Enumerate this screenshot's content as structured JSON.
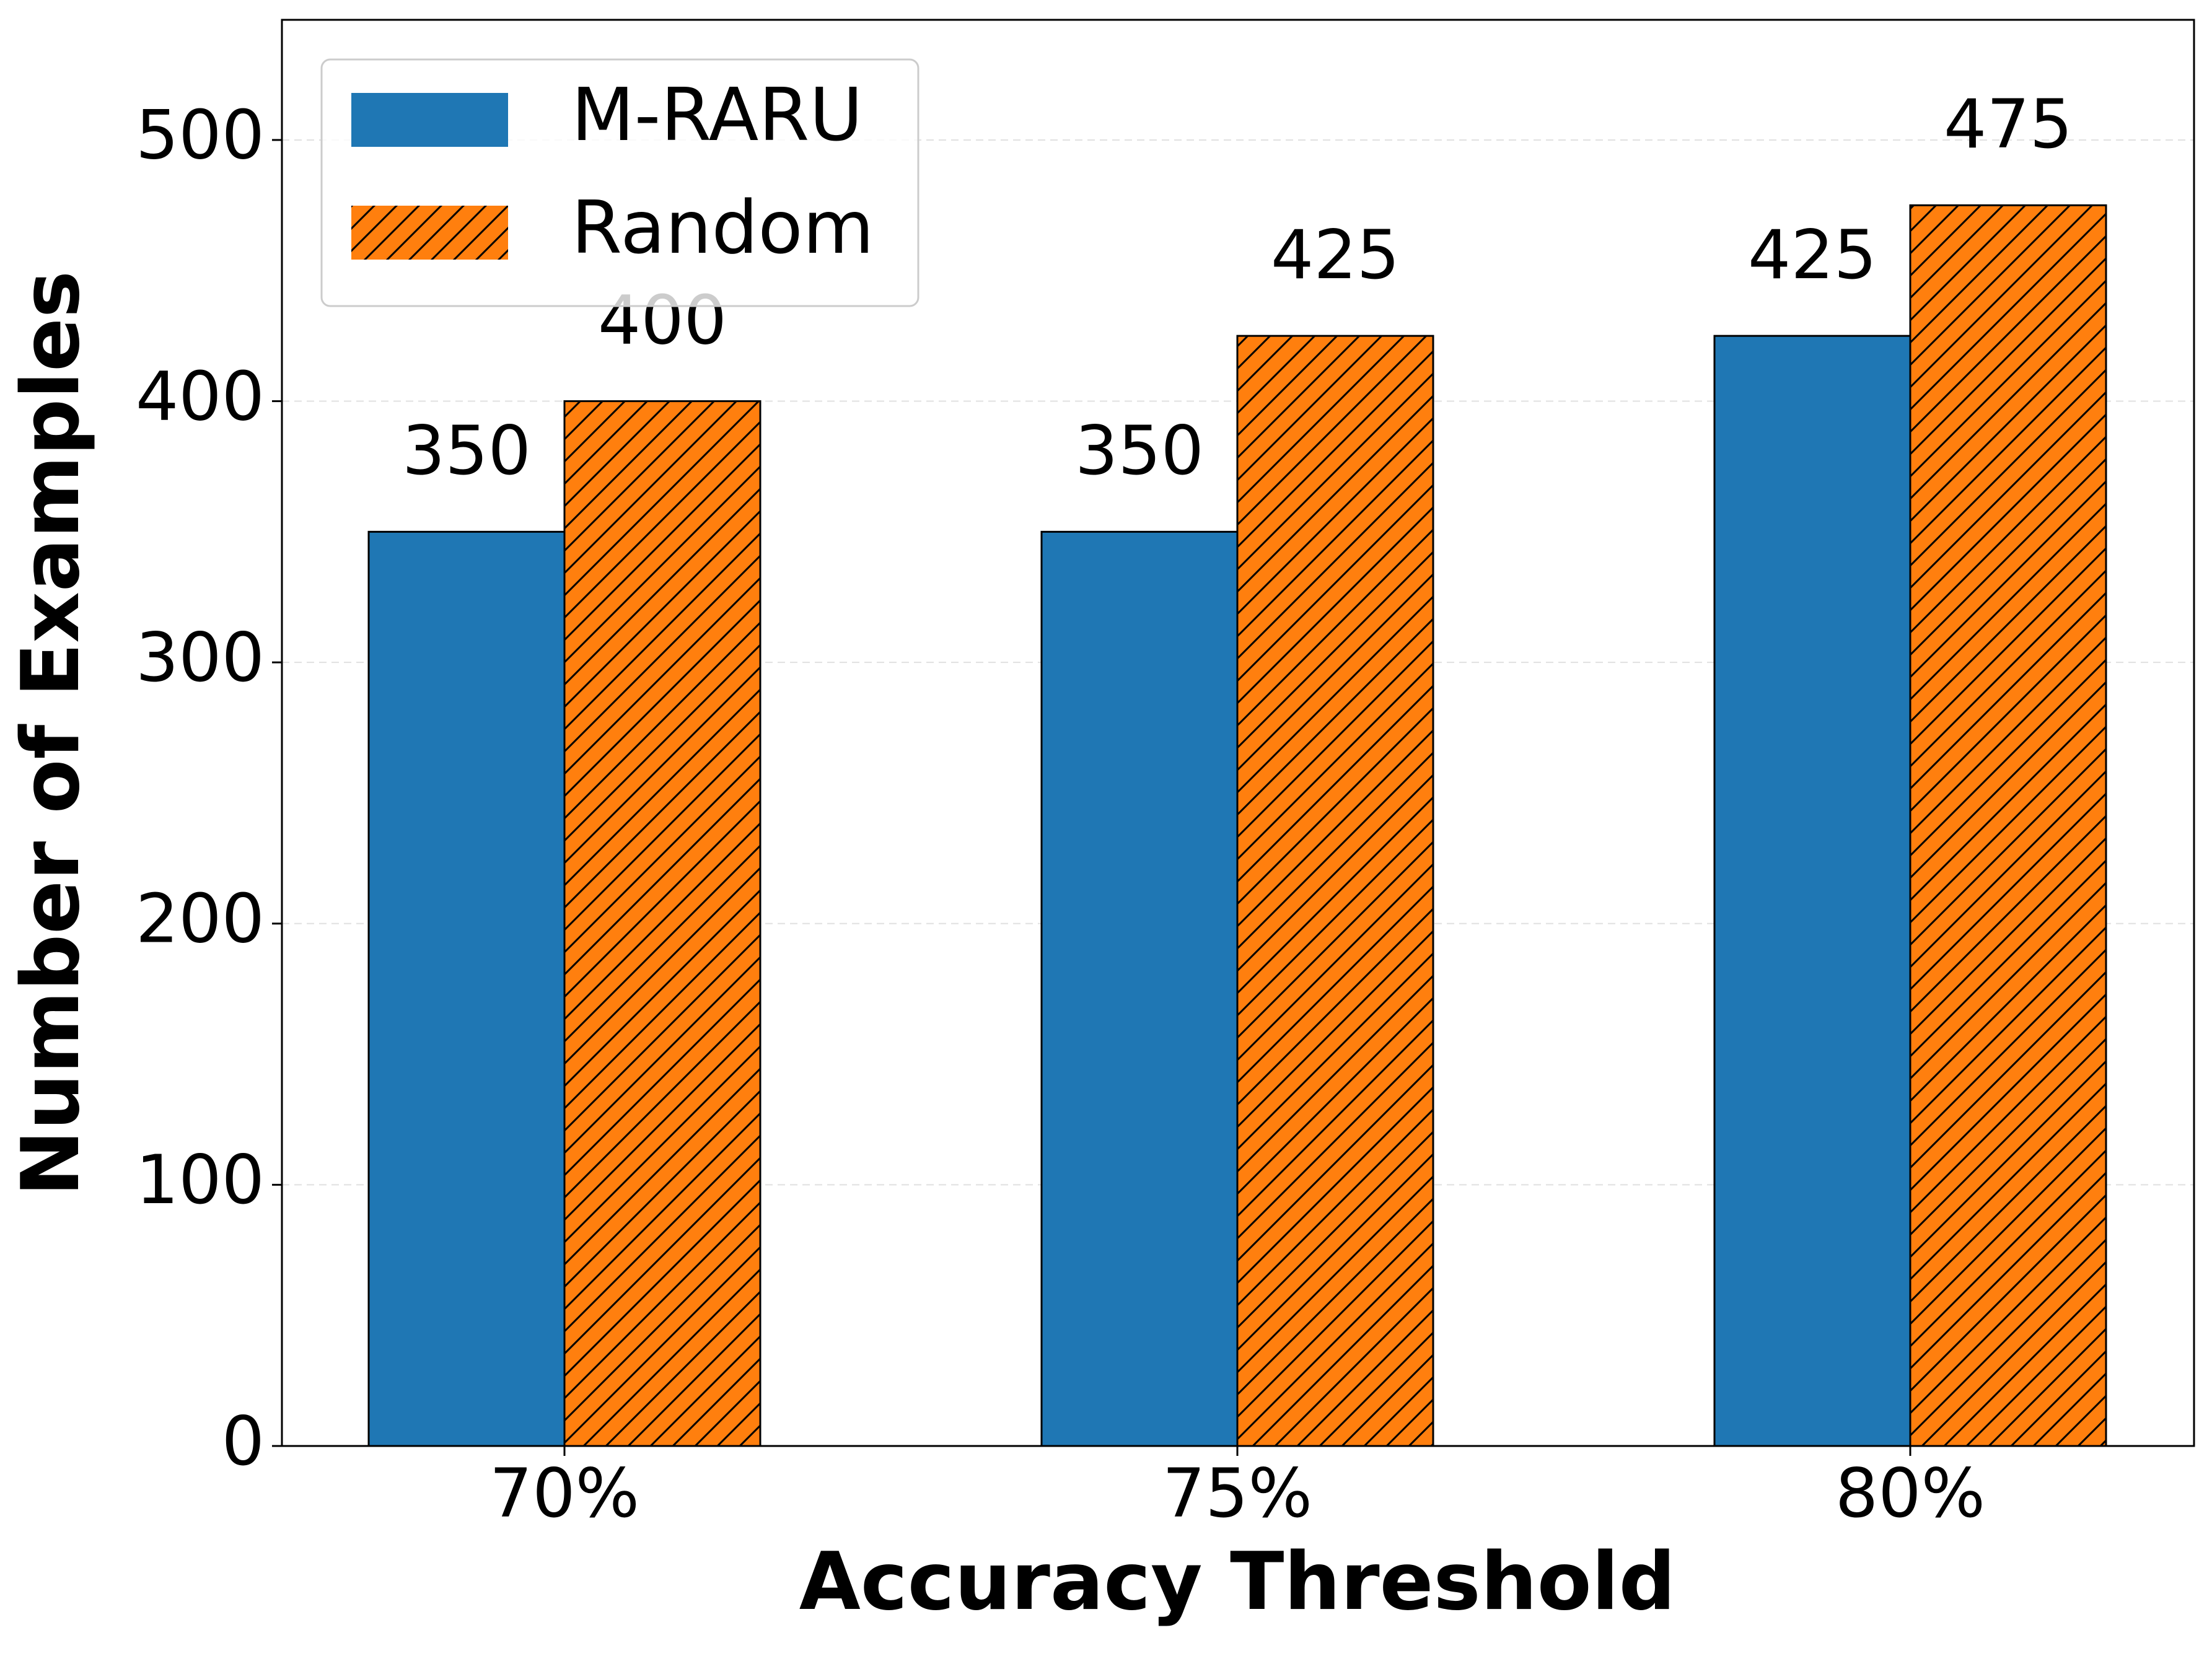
{
  "chart_data": {
    "type": "bar",
    "x_label": "Accuracy Threshold",
    "y_label": "Number of Examples",
    "categories": [
      "70%",
      "75%",
      "80%"
    ],
    "series": [
      {
        "name": "M-RARU",
        "color": "#1f77b4",
        "values": [
          350,
          350,
          425
        ]
      },
      {
        "name": "Random",
        "color": "#ff7f0e",
        "hatch": "///",
        "values": [
          400,
          425,
          475
        ]
      }
    ],
    "ylim": [
      0,
      546
    ],
    "yticks": [
      0,
      100,
      200,
      300,
      400,
      500
    ],
    "grid": true,
    "legend": "upper left"
  }
}
